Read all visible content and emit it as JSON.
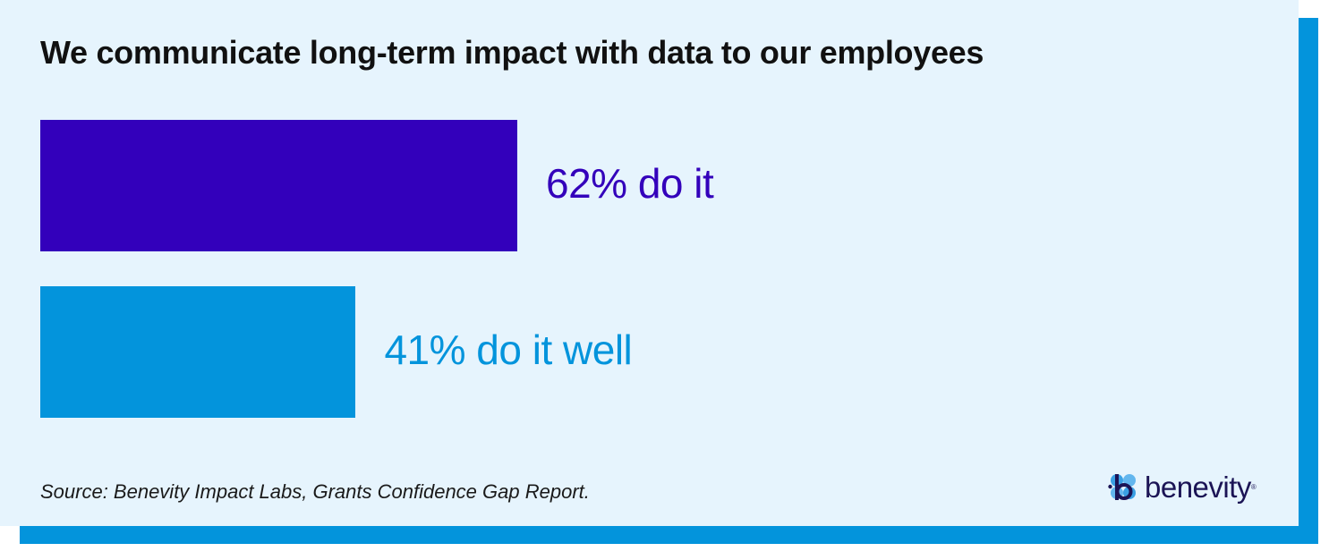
{
  "colors": {
    "primary_bar": "#3300bb",
    "secondary_bar": "#0394dc",
    "card_bg": "#e6f4fd",
    "title_text": "#111111",
    "logo_text": "#1b1455"
  },
  "chart_data": {
    "type": "bar",
    "orientation": "horizontal",
    "title": "We communicate long-term impact with data to our employees",
    "categories": [
      "do it",
      "do it well"
    ],
    "values": [
      62,
      41
    ],
    "unit": "%",
    "labels": [
      "62% do it",
      "41% do it well"
    ],
    "xlim": [
      0,
      100
    ],
    "grid": false,
    "legend": "none"
  },
  "footer": {
    "source": "Source: Benevity Impact Labs, Grants Confidence Gap Report."
  },
  "logo": {
    "icon": "benevity-logo-icon",
    "text": "benevity",
    "reg_mark": "®"
  }
}
